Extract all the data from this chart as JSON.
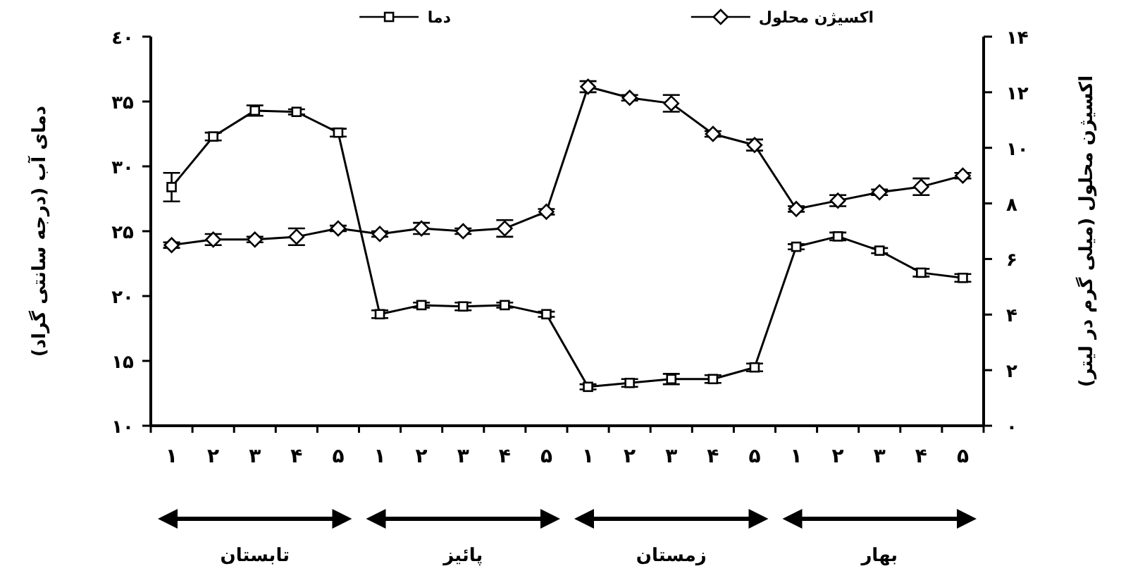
{
  "chart_data": {
    "type": "line",
    "ylabel": "دمای آب (درجه سانتی گراد)",
    "y2label": "اکسیژن محلول (میلی گرم در لیتر)",
    "categories": [
      "۱",
      "۲",
      "۳",
      "۴",
      "۵",
      "۱",
      "۲",
      "۳",
      "۴",
      "۵",
      "۱",
      "۲",
      "۳",
      "۴",
      "۵",
      "۱",
      "۲",
      "۳",
      "۴",
      "۵"
    ],
    "ylim": [
      10,
      40
    ],
    "yticks": [
      {
        "value": 10,
        "label": "۱۰"
      },
      {
        "value": 15,
        "label": "۱۵"
      },
      {
        "value": 20,
        "label": "۲۰"
      },
      {
        "value": 25,
        "label": "۲۵"
      },
      {
        "value": 30,
        "label": "۳۰"
      },
      {
        "value": 35,
        "label": "۳۵"
      },
      {
        "value": 40,
        "label": "٤٠"
      }
    ],
    "y2lim": [
      0,
      14
    ],
    "y2ticks": [
      {
        "value": 0,
        "label": "۰"
      },
      {
        "value": 2,
        "label": "۲"
      },
      {
        "value": 4,
        "label": "۴"
      },
      {
        "value": 6,
        "label": "۶"
      },
      {
        "value": 8,
        "label": "۸"
      },
      {
        "value": 10,
        "label": "۱۰"
      },
      {
        "value": 12,
        "label": "۱۲"
      },
      {
        "value": 14,
        "label": "۱۴"
      }
    ],
    "series": [
      {
        "name": "دما",
        "color": "#000000",
        "marker": "square",
        "values": [
          28.4,
          32.3,
          34.3,
          34.2,
          32.6,
          18.6,
          19.3,
          19.2,
          19.3,
          18.6,
          13.0,
          13.3,
          13.6,
          13.6,
          14.5,
          23.8,
          24.6,
          23.5,
          21.8,
          21.4
        ],
        "errors": [
          1.1,
          0.3,
          0.4,
          0.2,
          0.3,
          0.3,
          0.2,
          0.3,
          0.2,
          0.2,
          0.2,
          0.3,
          0.4,
          0.3,
          0.3,
          0.2,
          0.3,
          0.2,
          0.3,
          0.3
        ]
      },
      {
        "name": "اکسیژن محلول",
        "color": "#000000",
        "marker": "diamond",
        "axis": "y2",
        "values": [
          6.5,
          6.7,
          6.7,
          6.8,
          7.1,
          6.9,
          7.1,
          7.0,
          7.1,
          7.7,
          12.2,
          11.8,
          11.6,
          10.5,
          10.1,
          7.8,
          8.1,
          8.4,
          8.6,
          9.0
        ],
        "errors": [
          0.1,
          0.2,
          0.1,
          0.3,
          0.1,
          0.1,
          0.2,
          0.1,
          0.3,
          0.1,
          0.2,
          0.1,
          0.3,
          0.1,
          0.2,
          0.1,
          0.2,
          0.1,
          0.3,
          0.1
        ]
      }
    ],
    "annotations": [
      "تابستان",
      "پائیز",
      "زمستان",
      "بهار"
    ],
    "legend": "top",
    "grid": false
  }
}
